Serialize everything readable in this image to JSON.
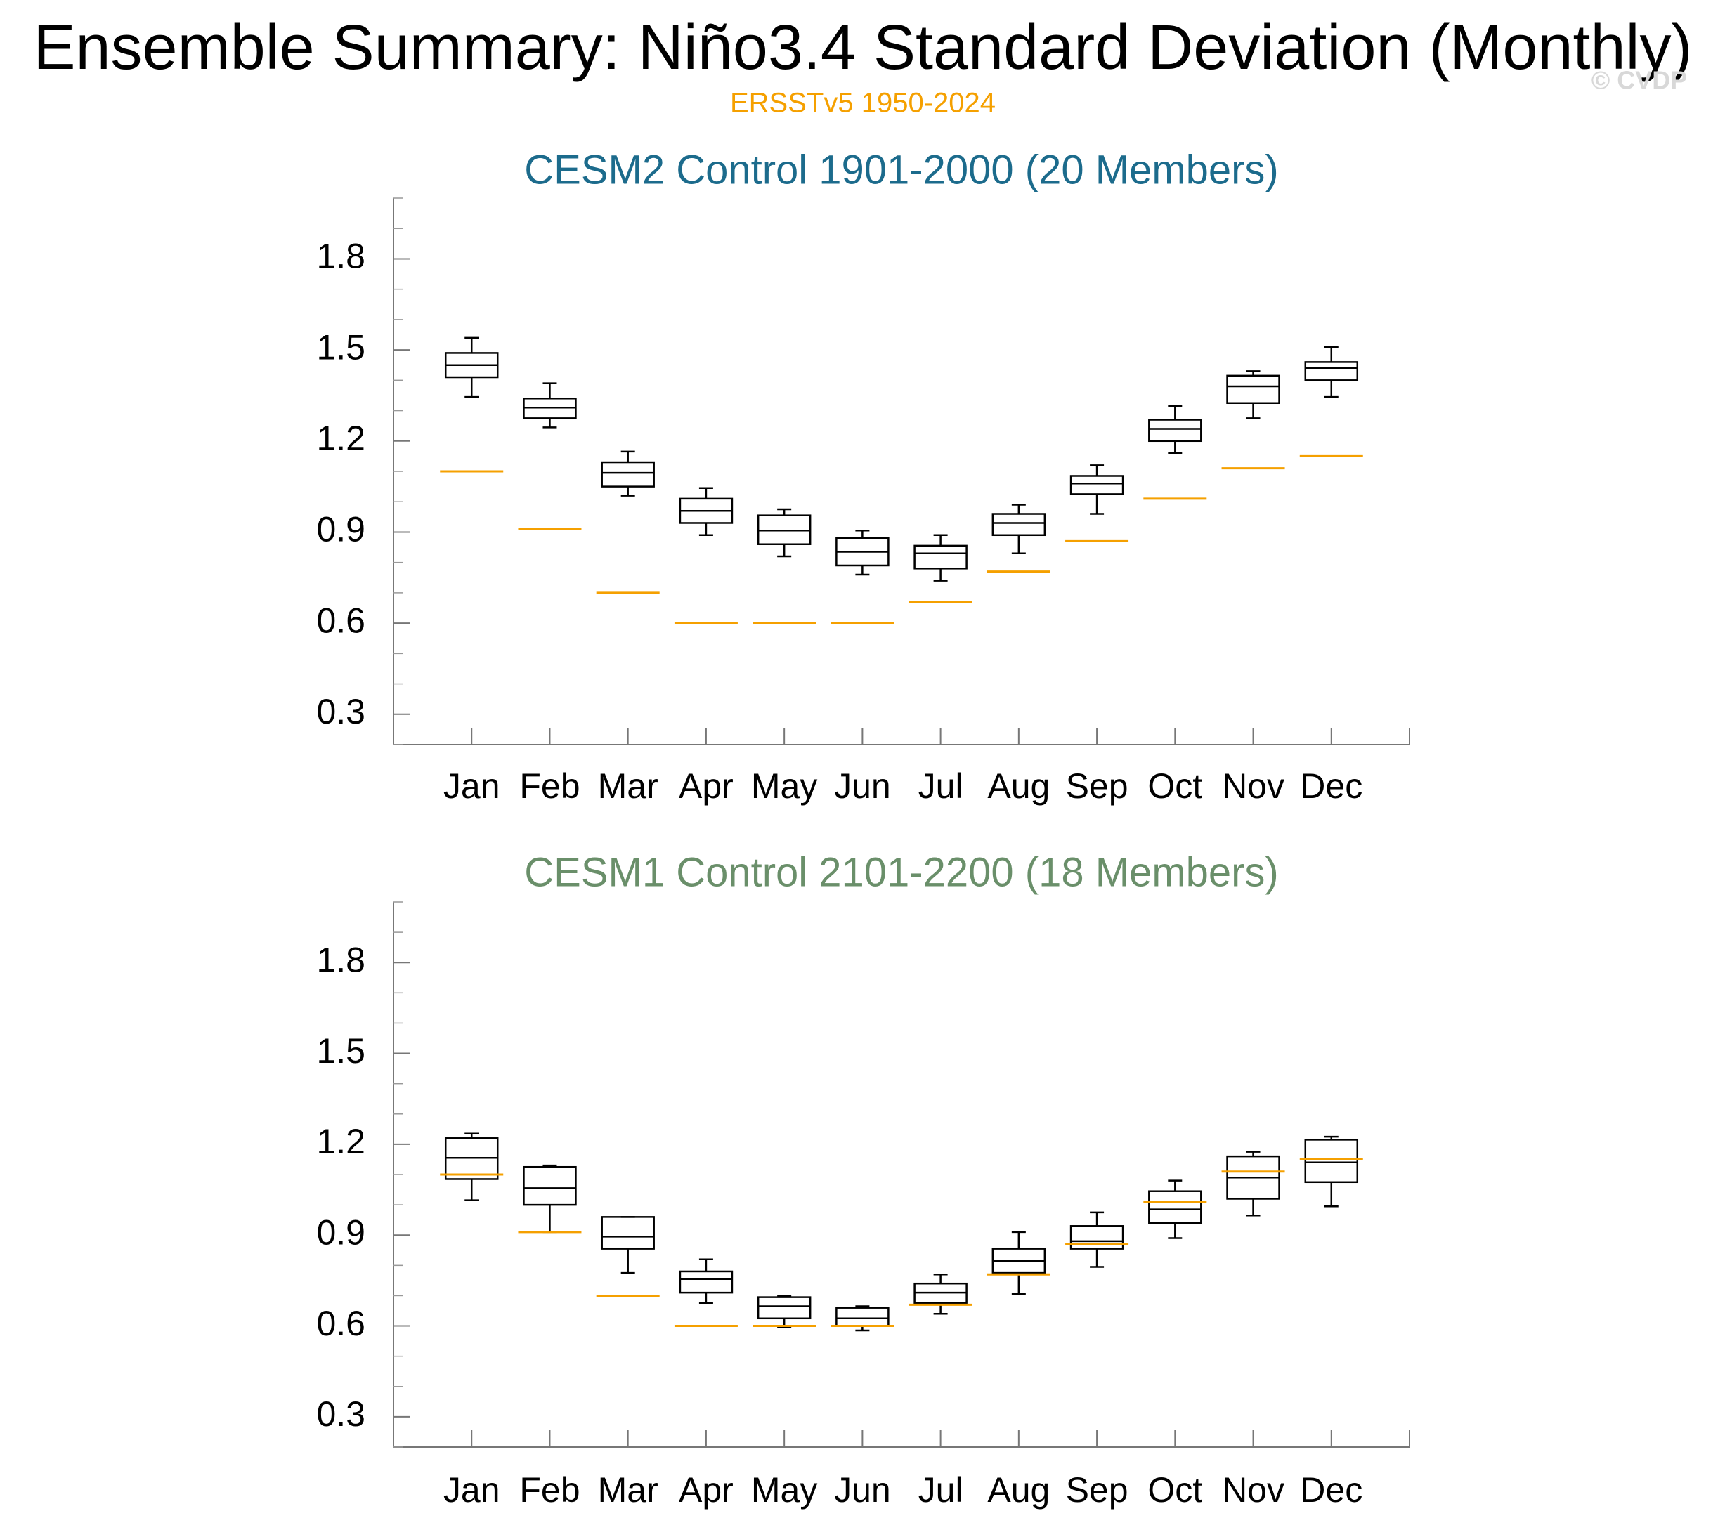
{
  "title": "Ensemble Summary: Niño3.4 Standard Deviation (Monthly)",
  "reference_label": "ERSSTv5 1950-2024",
  "reference_color": "#f5a000",
  "watermark": "© CVDP",
  "chart_data": [
    {
      "type": "box",
      "title": "CESM2 Control 1901-2000 (20 Members)",
      "title_color": "#1c6b8c",
      "categories": [
        "Jan",
        "Feb",
        "Mar",
        "Apr",
        "May",
        "Jun",
        "Jul",
        "Aug",
        "Sep",
        "Oct",
        "Nov",
        "Dec"
      ],
      "min": [
        1.345,
        1.245,
        1.02,
        0.89,
        0.82,
        0.76,
        0.74,
        0.83,
        0.96,
        1.16,
        1.275,
        1.345
      ],
      "q1": [
        1.41,
        1.275,
        1.05,
        0.93,
        0.86,
        0.79,
        0.78,
        0.89,
        1.025,
        1.2,
        1.325,
        1.4
      ],
      "median": [
        1.45,
        1.31,
        1.095,
        0.97,
        0.905,
        0.835,
        0.83,
        0.93,
        1.06,
        1.24,
        1.38,
        1.44
      ],
      "q3": [
        1.49,
        1.34,
        1.13,
        1.01,
        0.955,
        0.88,
        0.855,
        0.96,
        1.085,
        1.27,
        1.415,
        1.46
      ],
      "max": [
        1.54,
        1.39,
        1.165,
        1.045,
        0.975,
        0.905,
        0.89,
        0.99,
        1.12,
        1.315,
        1.43,
        1.51
      ],
      "reference": [
        1.1,
        0.91,
        0.7,
        0.6,
        0.6,
        0.6,
        0.67,
        0.77,
        0.87,
        1.01,
        1.11,
        1.15
      ],
      "color": "#000000",
      "ylim": [
        0.2,
        2.0
      ],
      "yticks": [
        0.3,
        0.6,
        0.9,
        1.2,
        1.5,
        1.8
      ],
      "yminorticks": [
        0.2,
        0.4,
        0.5,
        0.7,
        0.8,
        1.0,
        1.1,
        1.3,
        1.4,
        1.6,
        1.7,
        1.9,
        2.0
      ]
    },
    {
      "type": "box",
      "title": "CESM1 Control 2101-2200 (18 Members)",
      "title_color": "#6a8f6a",
      "categories": [
        "Jan",
        "Feb",
        "Mar",
        "Apr",
        "May",
        "Jun",
        "Jul",
        "Aug",
        "Sep",
        "Oct",
        "Nov",
        "Dec"
      ],
      "min": [
        1.015,
        0.91,
        0.775,
        0.675,
        0.595,
        0.585,
        0.64,
        0.705,
        0.795,
        0.89,
        0.965,
        0.995
      ],
      "q1": [
        1.085,
        1.0,
        0.855,
        0.71,
        0.625,
        0.6,
        0.675,
        0.775,
        0.855,
        0.94,
        1.02,
        1.075
      ],
      "median": [
        1.155,
        1.055,
        0.895,
        0.755,
        0.665,
        0.625,
        0.71,
        0.815,
        0.88,
        0.985,
        1.09,
        1.14
      ],
      "q3": [
        1.22,
        1.125,
        0.96,
        0.78,
        0.695,
        0.66,
        0.74,
        0.855,
        0.93,
        1.045,
        1.16,
        1.215
      ],
      "max": [
        1.235,
        1.13,
        0.96,
        0.82,
        0.7,
        0.665,
        0.77,
        0.91,
        0.975,
        1.08,
        1.175,
        1.225
      ],
      "reference": [
        1.1,
        0.91,
        0.7,
        0.6,
        0.6,
        0.6,
        0.67,
        0.77,
        0.87,
        1.01,
        1.11,
        1.15
      ],
      "color": "#000000",
      "ylim": [
        0.2,
        2.0
      ],
      "yticks": [
        0.3,
        0.6,
        0.9,
        1.2,
        1.5,
        1.8
      ],
      "yminorticks": [
        0.2,
        0.4,
        0.5,
        0.7,
        0.8,
        1.0,
        1.1,
        1.3,
        1.4,
        1.6,
        1.7,
        1.9,
        2.0
      ]
    }
  ]
}
